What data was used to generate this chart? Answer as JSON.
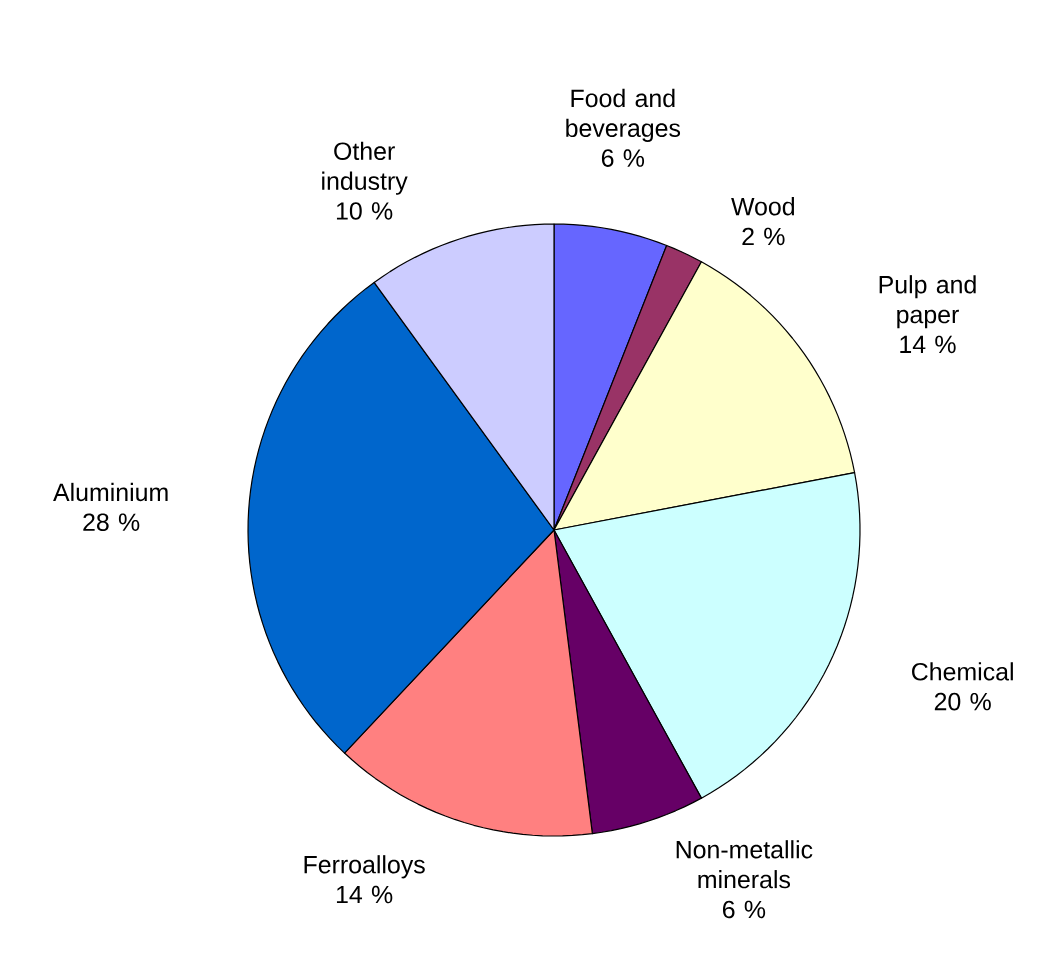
{
  "chart_data": {
    "type": "pie",
    "categories": [
      "Food and beverages",
      "Wood",
      "Pulp and paper",
      "Chemical",
      "Non-metallic minerals",
      "Ferroalloys",
      "Aluminium",
      "Other industry"
    ],
    "values": [
      6,
      2,
      14,
      20,
      6,
      14,
      28,
      10
    ],
    "value_labels": [
      "6 %",
      "2 %",
      "14 %",
      "20 %",
      "6 %",
      "14 %",
      "28 %",
      "10 %"
    ],
    "colors": [
      "#6666ff",
      "#993366",
      "#ffffcc",
      "#ccffff",
      "#660066",
      "#ff8080",
      "#0066cc",
      "#ccccff"
    ]
  }
}
